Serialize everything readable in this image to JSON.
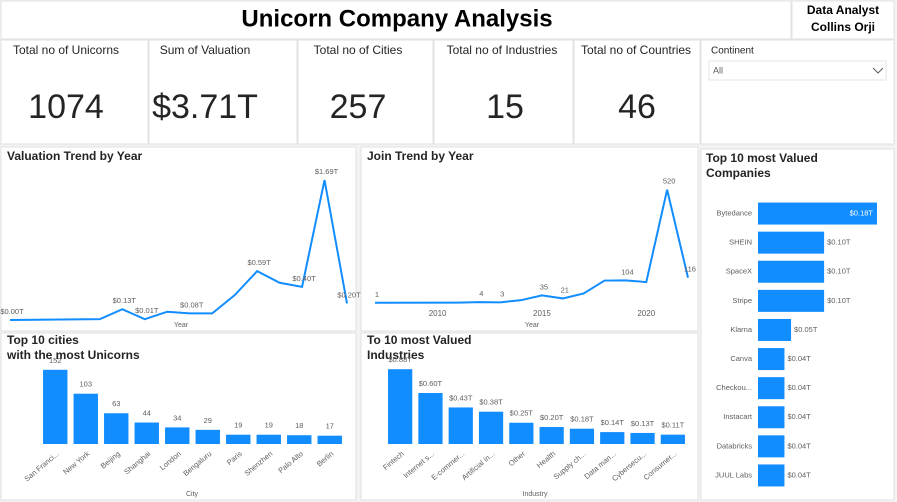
{
  "header": {
    "title": "Unicorn Company Analysis",
    "author_role": "Data Analyst",
    "author_name": "Collins Orji"
  },
  "kpis": [
    {
      "label": "Total no of Unicorns",
      "value": 1074
    },
    {
      "label": "Sum of Valuation",
      "value": "$3.71T"
    },
    {
      "label": "Total no of Cities",
      "value": 257
    },
    {
      "label": "Total no of Industries",
      "value": 15
    },
    {
      "label": "Total no of Countries",
      "value": 46
    }
  ],
  "slicer": {
    "label": "Continent",
    "value": "All"
  },
  "chart_data": [
    {
      "type": "line",
      "title": "Valuation Trend by Year",
      "xlabel": "Year",
      "color": "#118dff",
      "x": [
        2007,
        2011,
        2012,
        2013,
        2014,
        2015,
        2016,
        2017,
        2018,
        2019,
        2020,
        2021,
        2022
      ],
      "values": [
        0.0,
        0.01,
        0.13,
        0.01,
        0.1,
        0.08,
        0.08,
        0.3,
        0.59,
        0.45,
        0.4,
        1.69,
        0.2
      ],
      "value_labels": [
        "$0.00T",
        null,
        "$0.13T",
        "$0.01T",
        null,
        "$0.08T",
        null,
        null,
        "$0.59T",
        null,
        "$0.40T",
        "$1.69T",
        "$0.20T"
      ],
      "xlim": [
        2007,
        2022
      ],
      "ylim": [
        0,
        1.8
      ]
    },
    {
      "type": "line",
      "title": "Join Trend by Year",
      "xlabel": "Year",
      "color": "#118dff",
      "x": [
        2007,
        2011,
        2012,
        2013,
        2014,
        2015,
        2016,
        2017,
        2018,
        2019,
        2020,
        2021,
        2022
      ],
      "values": [
        1,
        2,
        4,
        3,
        13,
        35,
        21,
        44,
        103,
        104,
        96,
        520,
        116
      ],
      "value_labels": [
        "1",
        null,
        "4",
        "3",
        null,
        "35",
        "21",
        null,
        null,
        "104",
        null,
        "520",
        "116"
      ],
      "xlim": [
        2007,
        2022
      ],
      "xticks": [
        2010,
        2015,
        2020
      ],
      "ylim": [
        0,
        560
      ]
    },
    {
      "type": "hbar",
      "title": "Top 10 most Valued Companies",
      "color": "#118dff",
      "categories": [
        "Bytedance",
        "SHEIN",
        "SpaceX",
        "Stripe",
        "Klarna",
        "Canva",
        "Checkou...",
        "Instacart",
        "Databricks",
        "JUUL Labs"
      ],
      "values": [
        0.18,
        0.1,
        0.1,
        0.1,
        0.05,
        0.04,
        0.04,
        0.04,
        0.04,
        0.04
      ],
      "value_labels": [
        "$0.18T",
        "$0.10T",
        "$0.10T",
        "$0.10T",
        "$0.05T",
        "$0.04T",
        "$0.04T",
        "$0.04T",
        "$0.04T",
        "$0.04T"
      ],
      "xlim": [
        0,
        0.18
      ]
    },
    {
      "type": "bar",
      "title": "Top 10 cities with the most Unicorns",
      "xlabel": "City",
      "color": "#118dff",
      "categories": [
        "San Franci...",
        "New York",
        "Beijing",
        "Shanghai",
        "London",
        "Bengaluru",
        "Paris",
        "Shenzhen",
        "Palo Alto",
        "Berlin"
      ],
      "values": [
        152,
        103,
        63,
        44,
        34,
        29,
        19,
        19,
        18,
        17
      ],
      "ylim": [
        0,
        170
      ]
    },
    {
      "type": "bar",
      "title": "To 10 most Valued Industries",
      "xlabel": "Industry",
      "color": "#118dff",
      "categories": [
        "Fintech",
        "Internet s...",
        "E-commer...",
        "Artificial in...",
        "Other",
        "Health",
        "Supply ch...",
        "Data man...",
        "Cybersecu...",
        "Consumer..."
      ],
      "values": [
        0.88,
        0.6,
        0.43,
        0.38,
        0.25,
        0.2,
        0.18,
        0.14,
        0.13,
        0.11
      ],
      "value_labels": [
        "$0.88T",
        "$0.60T",
        "$0.43T",
        "$0.38T",
        "$0.25T",
        "$0.20T",
        "$0.18T",
        "$0.14T",
        "$0.13T",
        "$0.11T"
      ],
      "ylim": [
        0,
        1.0
      ]
    }
  ]
}
